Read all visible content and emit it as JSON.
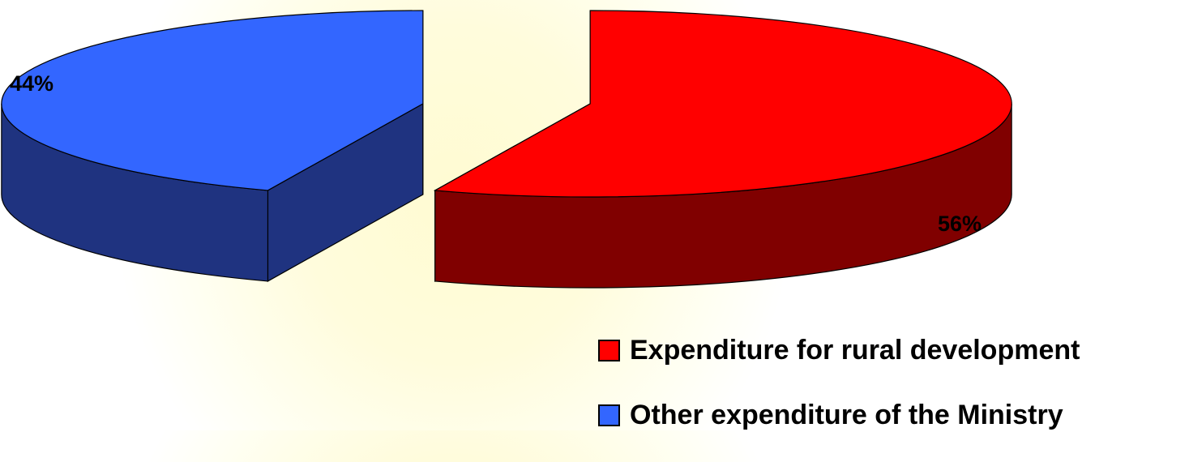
{
  "chart_data": {
    "type": "pie",
    "style": "3d-exploded",
    "slices": [
      {
        "label": "Expenditure for rural development",
        "value": 56,
        "display": "56%",
        "color": "#ff0000",
        "side_color": "#800000"
      },
      {
        "label": "Other expenditure of the Ministry",
        "value": 44,
        "display": "44%",
        "color": "#3366ff",
        "side_color": "#1f3380"
      }
    ],
    "legend_position": "bottom-right"
  }
}
